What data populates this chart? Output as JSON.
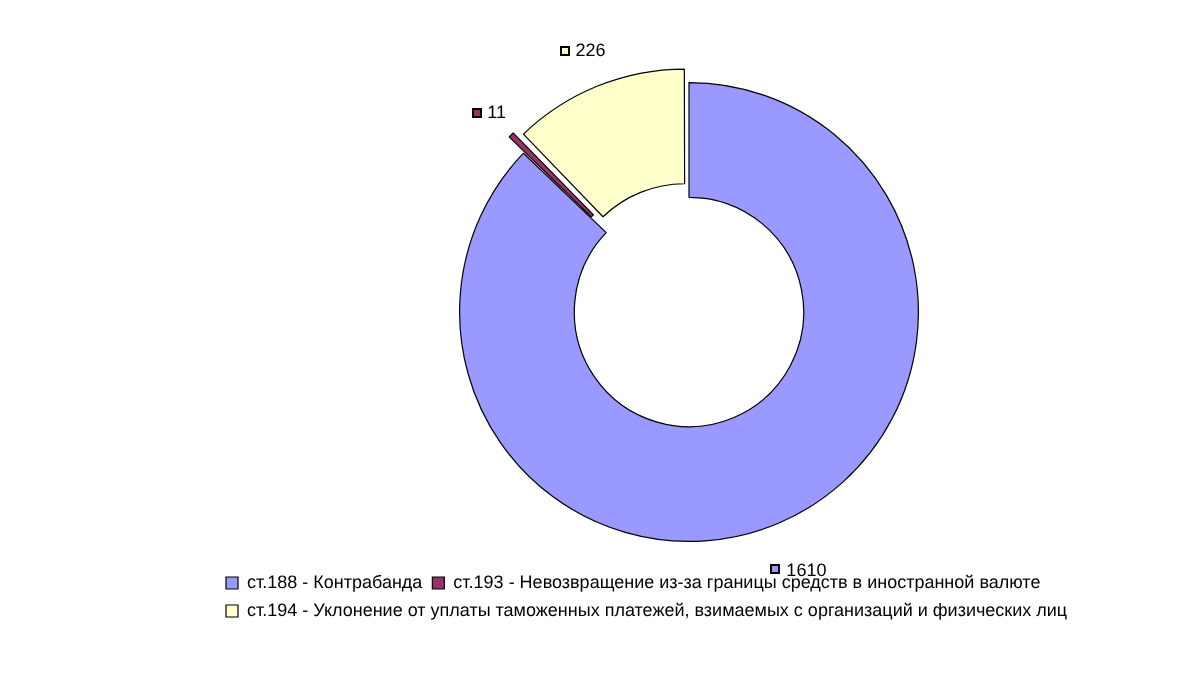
{
  "chart_data": {
    "type": "donut",
    "categories": [
      "ст.188 - Контрабанда",
      "ст.193 - Невозвращение из-за границы средств в иностранной валюте",
      "ст.194 - Уклонение от уплаты таможенных платежей, взимаемых с организаций и физических лиц"
    ],
    "values": [
      1610,
      11,
      226
    ],
    "colors": [
      "#9999ff",
      "#993366",
      "#ffffcc"
    ],
    "data_labels": true,
    "legend": "bottom"
  }
}
